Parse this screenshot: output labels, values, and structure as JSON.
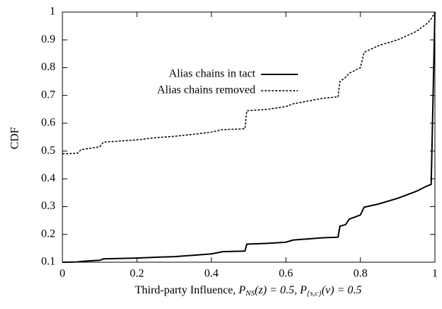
{
  "chart_data": {
    "type": "line",
    "ylabel": "CDF",
    "xlabel": [
      "Third-party Influence, ",
      "P",
      "NS",
      "(z) = 0.5, ",
      "P",
      "{s,c}",
      "(v) = 0.5"
    ],
    "x": [
      0,
      0.04,
      0.05,
      0.1,
      0.11,
      0.2,
      0.25,
      0.3,
      0.35,
      0.4,
      0.43,
      0.49,
      0.495,
      0.55,
      0.6,
      0.62,
      0.7,
      0.74,
      0.745,
      0.76,
      0.77,
      0.8,
      0.81,
      0.85,
      0.9,
      0.95,
      0.98,
      0.99,
      1.0
    ],
    "series": [
      {
        "name": "Alias chains in tact",
        "color": "#000000",
        "dash": "solid",
        "values": [
          0.1,
          0.101,
          0.103,
          0.107,
          0.112,
          0.115,
          0.118,
          0.12,
          0.125,
          0.13,
          0.138,
          0.14,
          0.165,
          0.168,
          0.172,
          0.18,
          0.188,
          0.19,
          0.23,
          0.235,
          0.255,
          0.27,
          0.298,
          0.31,
          0.33,
          0.355,
          0.375,
          0.38,
          1.0
        ]
      },
      {
        "name": "Alias chains removed",
        "color": "#000000",
        "dash": "dashed",
        "values": [
          0.49,
          0.492,
          0.505,
          0.515,
          0.532,
          0.54,
          0.548,
          0.553,
          0.56,
          0.568,
          0.577,
          0.58,
          0.645,
          0.65,
          0.66,
          0.67,
          0.69,
          0.695,
          0.75,
          0.765,
          0.78,
          0.8,
          0.855,
          0.88,
          0.9,
          0.93,
          0.96,
          0.975,
          1.0
        ]
      }
    ],
    "xlim": [
      0,
      1
    ],
    "ylim": [
      0.1,
      1
    ],
    "xticks": [
      0,
      0.2,
      0.4,
      0.6,
      0.8,
      1
    ],
    "yticks": [
      0.1,
      0.2,
      0.3,
      0.4,
      0.5,
      0.6,
      0.7,
      0.8,
      0.9,
      1
    ],
    "legend": "upper-center"
  }
}
